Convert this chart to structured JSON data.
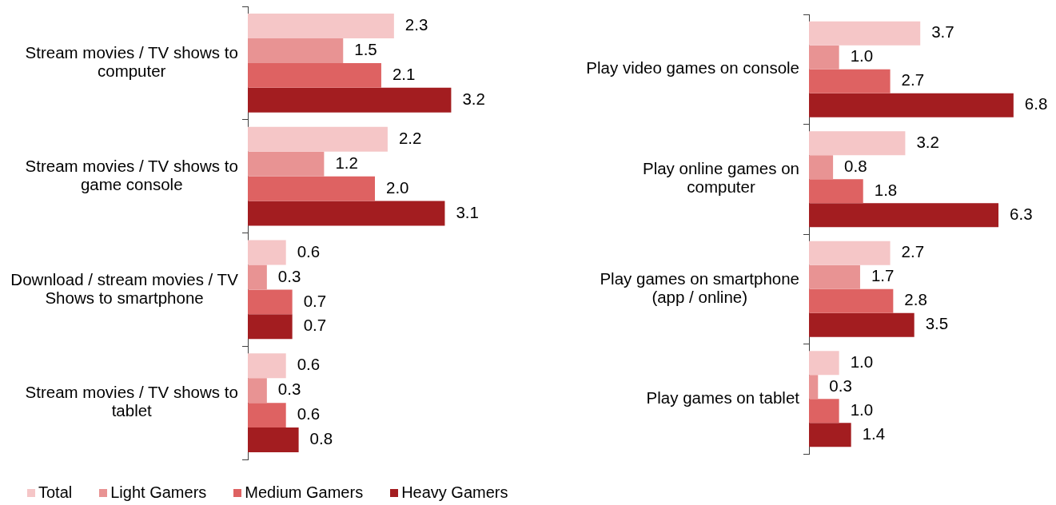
{
  "chart_data": [
    {
      "type": "bar",
      "orientation": "horizontal",
      "categories": [
        "Stream movies / TV shows to computer",
        "Stream movies / TV shows to game console",
        "Download / stream movies / TV Shows to smartphone",
        "Stream movies / TV shows to tablet"
      ],
      "series": [
        {
          "name": "Total",
          "color": "#f5c6c7",
          "values": [
            2.3,
            2.2,
            0.6,
            0.6
          ],
          "value_labels": [
            "2.3",
            "2.2",
            "0.6",
            "0.6"
          ]
        },
        {
          "name": "Light Gamers",
          "color": "#e89393",
          "values": [
            1.5,
            1.2,
            0.3,
            0.3
          ],
          "value_labels": [
            "1.5",
            "1.2",
            "0.3",
            "0.3"
          ]
        },
        {
          "name": "Medium Gamers",
          "color": "#de6262",
          "values": [
            2.1,
            2.0,
            0.7,
            0.6
          ],
          "value_labels": [
            "2.1",
            "2.0",
            "0.7",
            "0.6"
          ]
        },
        {
          "name": "Heavy Gamers",
          "color": "#a31d20",
          "values": [
            3.2,
            3.1,
            0.7,
            0.8
          ],
          "value_labels": [
            "3.2",
            "3.1",
            "0.7",
            "0.8"
          ]
        }
      ],
      "tick_labels": "y",
      "legend": "bottom left"
    },
    {
      "type": "bar",
      "orientation": "horizontal",
      "categories": [
        "Play video games on console",
        "Play online games on computer",
        "Play games on smartphone (app / online)",
        "Play games on tablet"
      ],
      "series": [
        {
          "color": "#f5c6c7",
          "values": [
            3.7,
            3.2,
            2.7,
            1.0
          ],
          "value_labels": [
            "3.7",
            "3.2",
            "2.7",
            "1.0"
          ]
        },
        {
          "color": "#e89393",
          "values": [
            1.0,
            0.8,
            1.7,
            0.3
          ],
          "value_labels": [
            "1.0",
            "0.8",
            "1.7",
            "0.3"
          ]
        },
        {
          "color": "#de6262",
          "values": [
            2.7,
            1.8,
            2.8,
            1.0
          ],
          "value_labels": [
            "2.7",
            "1.8",
            "2.8",
            "1.0"
          ]
        },
        {
          "color": "#a31d20",
          "values": [
            6.8,
            6.3,
            3.5,
            1.4
          ],
          "value_labels": [
            "6.8",
            "6.3",
            "3.5",
            "1.4"
          ]
        }
      ],
      "tick_labels": "y"
    }
  ]
}
